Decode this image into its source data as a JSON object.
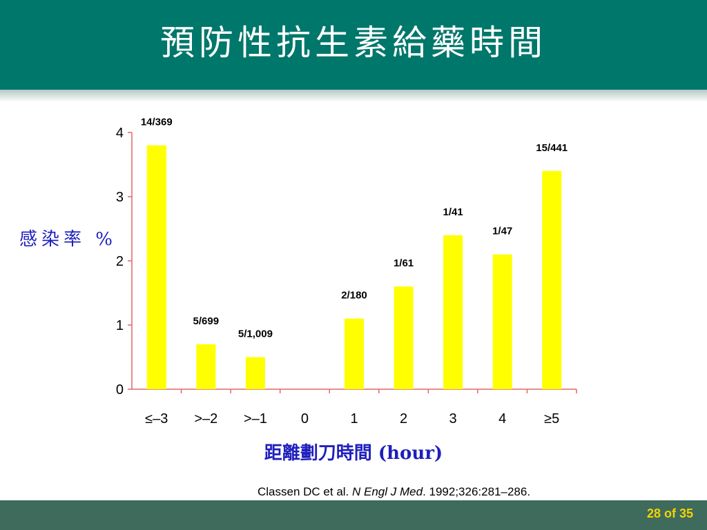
{
  "slide": {
    "title": "預防性抗生素給藥時間",
    "citation_authors": "Classen DC et al.",
    "citation_journal": "N Engl J Med",
    "citation_rest": ". 1992;326:281–286.",
    "page": "28 of 35"
  },
  "colors": {
    "header": "#00776b",
    "bar": "#ffff00",
    "axis": "#e06666",
    "label": "#1f1fbd",
    "footer": "#3f6b5c",
    "page_number": "#f4d400"
  },
  "chart_data": {
    "type": "bar",
    "xlabel": "距離劃刀時間 (hour)",
    "ylabel": "感染率 %",
    "categories": [
      "≤–3",
      ">–2",
      ">–1",
      "0",
      "1",
      "2",
      "3",
      "4",
      "≥5"
    ],
    "values": [
      3.8,
      0.7,
      0.5,
      0,
      1.1,
      1.6,
      2.4,
      2.1,
      3.4
    ],
    "data_labels": [
      "14/369",
      "5/699",
      "5/1,009",
      "",
      "2/180",
      "1/61",
      "1/41",
      "1/47",
      "15/441"
    ],
    "yticks": [
      "0",
      "1",
      "2",
      "3",
      "4"
    ],
    "ylim": [
      0,
      4
    ],
    "grid": false
  }
}
